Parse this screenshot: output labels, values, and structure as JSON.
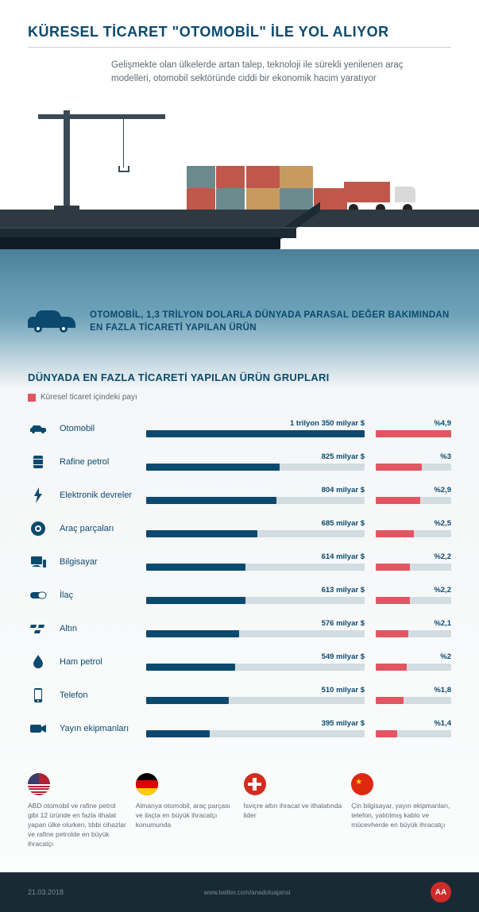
{
  "header": {
    "title": "KÜRESEL TİCARET \"OTOMOBİL\" İLE YOL ALIYOR"
  },
  "intro": {
    "text": "Gelişmekte olan ülkelerde artan talep, teknoloji ile sürekli yenilenen araç modelleri, otomobil sektöründe ciddi bir ekonomik hacim yaratıyor"
  },
  "car_block": {
    "text": "OTOMOBİL, 1,3 TRİLYON DOLARLA DÜNYADA PARASAL DEĞER BAKIMINDAN EN FAZLA TİCARETİ YAPILAN ÜRÜN"
  },
  "section": {
    "title": "DÜNYADA EN FAZLA TİCARETİ YAPILAN ÜRÜN GRUPLARI",
    "legend": "Küresel ticaret içindeki payı"
  },
  "chart": {
    "max_value": 1350,
    "max_pct": 4.9,
    "colors": {
      "track": "#d2dde2",
      "main": "#0b4a6e",
      "pct": "#e25563"
    },
    "rows": [
      {
        "icon": "car",
        "label": "Otomobil",
        "value": 1350,
        "value_label": "1 trilyon 350 milyar $",
        "pct": 4.9,
        "pct_label": "%4,9"
      },
      {
        "icon": "barrel",
        "label": "Rafine petrol",
        "value": 825,
        "value_label": "825 milyar $",
        "pct": 3.0,
        "pct_label": "%3"
      },
      {
        "icon": "bolt",
        "label": "Elektronik devreler",
        "value": 804,
        "value_label": "804 milyar $",
        "pct": 2.9,
        "pct_label": "%2,9"
      },
      {
        "icon": "tire",
        "label": "Araç parçaları",
        "value": 685,
        "value_label": "685 milyar $",
        "pct": 2.5,
        "pct_label": "%2,5"
      },
      {
        "icon": "computer",
        "label": "Bilgisayar",
        "value": 614,
        "value_label": "614 milyar $",
        "pct": 2.2,
        "pct_label": "%2,2"
      },
      {
        "icon": "pill",
        "label": "İlaç",
        "value": 613,
        "value_label": "613 milyar $",
        "pct": 2.2,
        "pct_label": "%2,2"
      },
      {
        "icon": "gold",
        "label": "Altın",
        "value": 576,
        "value_label": "576 milyar $",
        "pct": 2.1,
        "pct_label": "%2,1"
      },
      {
        "icon": "drop",
        "label": "Ham petrol",
        "value": 549,
        "value_label": "549 milyar $",
        "pct": 2.0,
        "pct_label": "%2"
      },
      {
        "icon": "phone",
        "label": "Telefon",
        "value": 510,
        "value_label": "510 milyar $",
        "pct": 1.8,
        "pct_label": "%1,8"
      },
      {
        "icon": "camera",
        "label": "Yayın ekipmanları",
        "value": 395,
        "value_label": "395 milyar $",
        "pct": 1.4,
        "pct_label": "%1,4"
      }
    ]
  },
  "countries": [
    {
      "flag": "us",
      "text": "ABD otomobil ve rafine petrol gibi 12 üründe en fazla ithalat yapan ülke olurken, tıbbi cihazlar ve rafine petrolde en büyük ihracatçı"
    },
    {
      "flag": "de",
      "text": "Almanya otomobil, araç parçası ve ilaçta en büyük ihracatçı konumunda"
    },
    {
      "flag": "ch",
      "text": "İsviçre altın ihracat ve ithalatında lider"
    },
    {
      "flag": "cn",
      "text": "Çin bilgisayar, yayın ekipmanları, telefon, yalıtılmış kablo ve mücevherde en büyük ihracatçı"
    }
  ],
  "footer": {
    "date": "21.03.2018",
    "source": "www.twitter.com/anadoluajansi",
    "logo": "AA"
  }
}
